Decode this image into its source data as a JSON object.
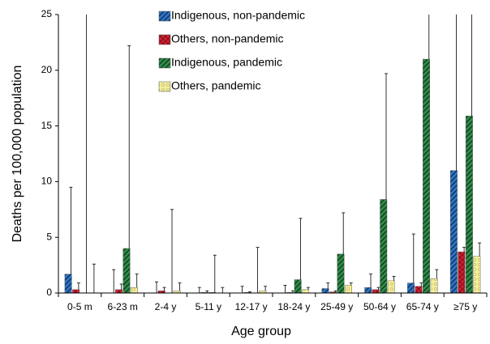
{
  "chart_data": {
    "type": "bar",
    "xlabel": "Age group",
    "ylabel": "Deaths per 100,000 population",
    "categories": [
      "0-5 m",
      "6-23 m",
      "2-4 y",
      "5-11 y",
      "12-17 y",
      "18-24 y",
      "25-49 y",
      "50-64 y",
      "65-74 y",
      "≥75 y"
    ],
    "series": [
      {
        "name": "Indigenous, non-pandemic",
        "color": "#2e74c8",
        "values": [
          1.7,
          0,
          0,
          0,
          0,
          0,
          0.4,
          0.5,
          0.9,
          11.0
        ],
        "errors": [
          7.8,
          2.1,
          1.0,
          0.5,
          0.6,
          0.7,
          0.5,
          1.2,
          4.4,
          14.7
        ]
      },
      {
        "name": "Others, non-pandemic",
        "color": "#d42030",
        "values": [
          0.3,
          0.3,
          0.2,
          0.05,
          0.05,
          0.05,
          0.1,
          0.3,
          0.6,
          3.7
        ],
        "errors": [
          0.6,
          0.5,
          0.3,
          0.15,
          0.05,
          0.15,
          0.1,
          0.2,
          0.3,
          0.4
        ]
      },
      {
        "name": "Indigenous, pandemic",
        "color": "#2e8b47",
        "values": [
          0,
          4.0,
          0,
          0.05,
          0,
          1.2,
          3.5,
          8.4,
          21.0,
          15.9
        ],
        "errors": [
          30,
          18.2,
          7.5,
          3.35,
          4.1,
          5.5,
          3.7,
          11.3,
          10,
          12
        ]
      },
      {
        "name": "Others, pandemic",
        "color": "#f3ee9a",
        "values": [
          0,
          0.5,
          0.2,
          0,
          0.2,
          0.3,
          0.7,
          1.1,
          1.3,
          3.3
        ],
        "errors": [
          2.6,
          1.2,
          0.7,
          0.5,
          0.4,
          0.2,
          0.2,
          0.4,
          0.8,
          1.2
        ]
      }
    ],
    "ylim": [
      0,
      25
    ],
    "yticks": [
      0,
      5,
      10,
      15,
      20,
      25
    ],
    "grid": false,
    "legend": "top"
  }
}
